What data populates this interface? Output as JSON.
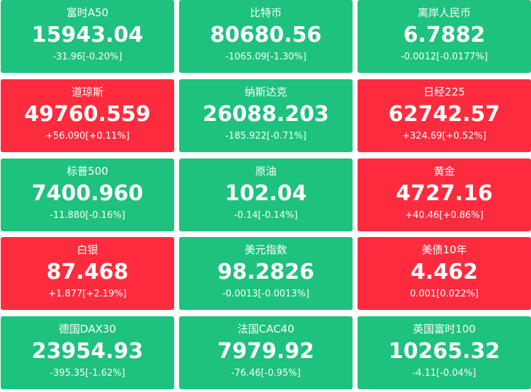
{
  "tiles": [
    {
      "name": "富时A50",
      "price": "15943.04",
      "change": "-31.96[-0.20%]",
      "color": "#1ec17d"
    },
    {
      "name": "比特币",
      "price": "80680.56",
      "change": "-1065.09[-1.30%]",
      "color": "#1ec17d"
    },
    {
      "name": "离岸人民币",
      "price": "6.7882",
      "change": "-0.0012[-0.0177%]",
      "color": "#1ec17d"
    },
    {
      "name": "道琼斯",
      "price": "49760.559",
      "change": "+56.090[+0.11%]",
      "color": "#fc2c3e"
    },
    {
      "name": "纳斯达克",
      "price": "26088.203",
      "change": "-185.922[-0.71%]",
      "color": "#1ec17d"
    },
    {
      "name": "日经225",
      "price": "62742.57",
      "change": "+324.69[+0.52%]",
      "color": "#fc2c3e"
    },
    {
      "name": "标普500",
      "price": "7400.960",
      "change": "-11.880[-0.16%]",
      "color": "#1ec17d"
    },
    {
      "name": "原油",
      "price": "102.04",
      "change": "-0.14[-0.14%]",
      "color": "#1ec17d"
    },
    {
      "name": "黄金",
      "price": "4727.16",
      "change": "+40.46[+0.86%]",
      "color": "#fc2c3e"
    },
    {
      "name": "白银",
      "price": "87.468",
      "change": "+1.877[+2.19%]",
      "color": "#fc2c3e"
    },
    {
      "name": "美元指数",
      "price": "98.2826",
      "change": "-0.0013[-0.0013%]",
      "color": "#1ec17d"
    },
    {
      "name": "美债10年",
      "price": "4.462",
      "change": "0.001[0.022%]",
      "color": "#fc2c3e"
    },
    {
      "name": "德国DAX30",
      "price": "23954.93",
      "change": "-395.35[-1.62%]",
      "color": "#1ec17d"
    },
    {
      "name": "法国CAC40",
      "price": "7979.92",
      "change": "-76.46[-0.95%]",
      "color": "#1ec17d"
    },
    {
      "name": "英国富时100",
      "price": "10265.32",
      "change": "-4.11[-0.04%]",
      "color": "#1ec17d"
    }
  ]
}
